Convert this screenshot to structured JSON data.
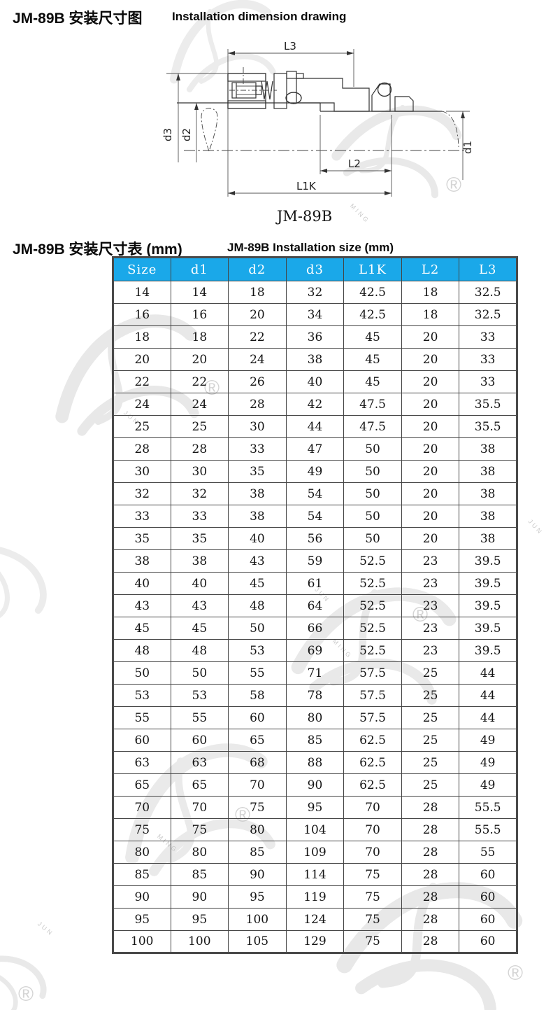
{
  "page": {
    "title_zh": "JM-89B 安装尺寸图",
    "title_en": "Installation dimension drawing",
    "table_title_zh": "JM-89B 安装尺寸表 (mm)",
    "table_title_en": "JM-89B Installation size (mm)"
  },
  "drawing": {
    "caption": "JM-89B",
    "dims": {
      "L3": "L3",
      "d3": "d3",
      "d2": "d2",
      "d1": "d1",
      "L2": "L2",
      "L1K": "L1K"
    }
  },
  "watermark": {
    "reg": "®",
    "word1": "JUN",
    "word2": "MING"
  },
  "table": {
    "header_bg": "#1aa8e9",
    "columns": [
      "Size",
      "d1",
      "d2",
      "d3",
      "L1K",
      "L2",
      "L3"
    ],
    "rows": [
      [
        "14",
        "14",
        "18",
        "32",
        "42.5",
        "18",
        "32.5"
      ],
      [
        "16",
        "16",
        "20",
        "34",
        "42.5",
        "18",
        "32.5"
      ],
      [
        "18",
        "18",
        "22",
        "36",
        "45",
        "20",
        "33"
      ],
      [
        "20",
        "20",
        "24",
        "38",
        "45",
        "20",
        "33"
      ],
      [
        "22",
        "22",
        "26",
        "40",
        "45",
        "20",
        "33"
      ],
      [
        "24",
        "24",
        "28",
        "42",
        "47.5",
        "20",
        "35.5"
      ],
      [
        "25",
        "25",
        "30",
        "44",
        "47.5",
        "20",
        "35.5"
      ],
      [
        "28",
        "28",
        "33",
        "47",
        "50",
        "20",
        "38"
      ],
      [
        "30",
        "30",
        "35",
        "49",
        "50",
        "20",
        "38"
      ],
      [
        "32",
        "32",
        "38",
        "54",
        "50",
        "20",
        "38"
      ],
      [
        "33",
        "33",
        "38",
        "54",
        "50",
        "20",
        "38"
      ],
      [
        "35",
        "35",
        "40",
        "56",
        "50",
        "20",
        "38"
      ],
      [
        "38",
        "38",
        "43",
        "59",
        "52.5",
        "23",
        "39.5"
      ],
      [
        "40",
        "40",
        "45",
        "61",
        "52.5",
        "23",
        "39.5"
      ],
      [
        "43",
        "43",
        "48",
        "64",
        "52.5",
        "23",
        "39.5"
      ],
      [
        "45",
        "45",
        "50",
        "66",
        "52.5",
        "23",
        "39.5"
      ],
      [
        "48",
        "48",
        "53",
        "69",
        "52.5",
        "23",
        "39.5"
      ],
      [
        "50",
        "50",
        "55",
        "71",
        "57.5",
        "25",
        "44"
      ],
      [
        "53",
        "53",
        "58",
        "78",
        "57.5",
        "25",
        "44"
      ],
      [
        "55",
        "55",
        "60",
        "80",
        "57.5",
        "25",
        "44"
      ],
      [
        "60",
        "60",
        "65",
        "85",
        "62.5",
        "25",
        "49"
      ],
      [
        "63",
        "63",
        "68",
        "88",
        "62.5",
        "25",
        "49"
      ],
      [
        "65",
        "65",
        "70",
        "90",
        "62.5",
        "25",
        "49"
      ],
      [
        "70",
        "70",
        "75",
        "95",
        "70",
        "28",
        "55.5"
      ],
      [
        "75",
        "75",
        "80",
        "104",
        "70",
        "28",
        "55.5"
      ],
      [
        "80",
        "80",
        "85",
        "109",
        "70",
        "28",
        "55"
      ],
      [
        "85",
        "85",
        "90",
        "114",
        "75",
        "28",
        "60"
      ],
      [
        "90",
        "90",
        "95",
        "119",
        "75",
        "28",
        "60"
      ],
      [
        "95",
        "95",
        "100",
        "124",
        "75",
        "28",
        "60"
      ],
      [
        "100",
        "100",
        "105",
        "129",
        "75",
        "28",
        "60"
      ]
    ]
  }
}
